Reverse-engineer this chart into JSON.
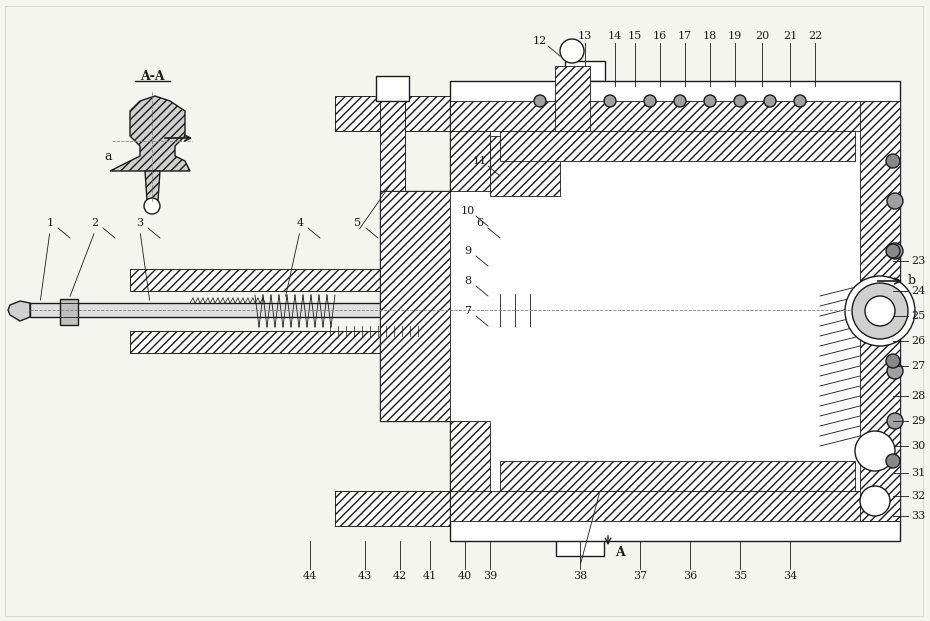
{
  "background_color": "#f5f5f0",
  "line_color": "#1a1a1a",
  "hatch_color": "#1a1a1a",
  "title": "",
  "figsize": [
    9.3,
    6.21
  ],
  "dpi": 100,
  "labels_left": [
    "1",
    "2",
    "3",
    "4",
    "5",
    "6",
    "7",
    "8",
    "9",
    "10",
    "11",
    "12"
  ],
  "labels_right": [
    "23",
    "24",
    "25",
    "26",
    "27",
    "28",
    "29",
    "30",
    "31",
    "32",
    "33"
  ],
  "labels_top": [
    "13",
    "14",
    "15",
    "16",
    "17",
    "18",
    "19",
    "20",
    "21",
    "22"
  ],
  "labels_bottom": [
    "44",
    "43",
    "42",
    "41",
    "40",
    "39",
    "38",
    "37",
    "36",
    "35",
    "34"
  ],
  "annotation_aa": "A-A",
  "annotation_a_left": "a",
  "annotation_b": "b",
  "annotation_a_bottom": "A"
}
